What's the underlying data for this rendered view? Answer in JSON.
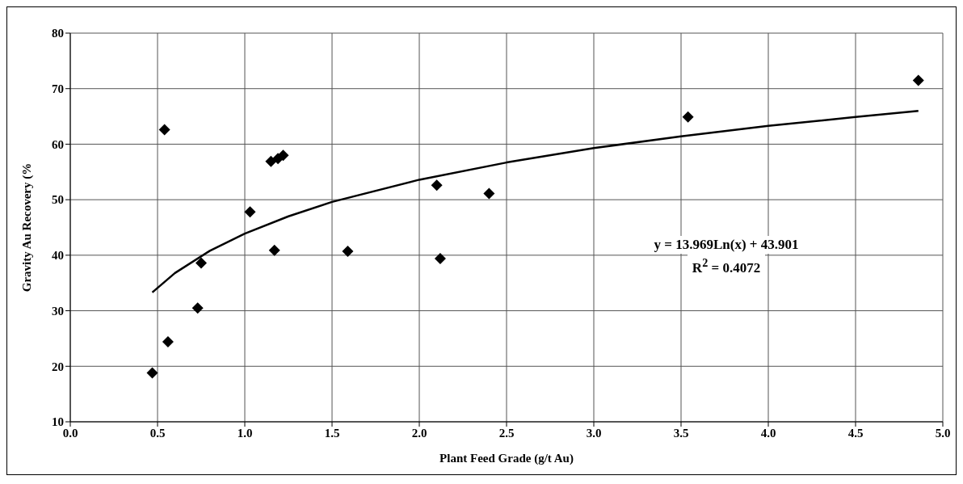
{
  "chart_data": {
    "type": "scatter",
    "xlabel": "Plant Feed Grade (g/t Au)",
    "ylabel": "Gravity Au Recovery (%",
    "xlim": [
      0,
      5
    ],
    "xticks": [
      {
        "value": 0,
        "label": "0.0"
      },
      {
        "value": 0.5,
        "label": "0.5"
      },
      {
        "value": 1,
        "label": "1.0"
      },
      {
        "value": 1.5,
        "label": "1.5"
      },
      {
        "value": 2,
        "label": "2.0"
      },
      {
        "value": 2.5,
        "label": "2.5"
      },
      {
        "value": 3,
        "label": "3.0"
      },
      {
        "value": 3.5,
        "label": "3.5"
      },
      {
        "value": 4,
        "label": "4.0"
      },
      {
        "value": 4.5,
        "label": "4.5"
      },
      {
        "value": 5,
        "label": "5.0"
      }
    ],
    "ylim": [
      10,
      80
    ],
    "yticks": [
      10,
      20,
      30,
      40,
      50,
      60,
      70,
      80
    ],
    "grid": true,
    "legend": false,
    "series": [
      {
        "marker": "diamond",
        "color": "#000000",
        "x": [
          0.47,
          0.54,
          0.56,
          0.73,
          0.75,
          1.03,
          1.15,
          1.19,
          1.22,
          1.17,
          1.59,
          2.1,
          2.12,
          2.4,
          3.54,
          4.86
        ],
        "values": [
          18.8,
          62.6,
          24.4,
          30.5,
          38.6,
          47.8,
          56.9,
          57.4,
          58,
          40.9,
          40.7,
          52.6,
          39.4,
          51.1,
          64.9,
          71.5
        ]
      },
      {
        "type": "line",
        "marker": "none",
        "color": "#000000",
        "x": [
          0.47,
          0.6,
          0.8,
          1.0,
          1.25,
          1.5,
          2.0,
          2.5,
          3.0,
          3.5,
          4.0,
          4.5,
          4.86
        ],
        "values": [
          33.3,
          36.8,
          40.8,
          43.9,
          47.0,
          49.6,
          53.6,
          56.7,
          59.3,
          61.4,
          63.3,
          64.9,
          66.0
        ]
      }
    ],
    "annotations": [
      "y = 13.969Ln(x) + 43.901",
      "R$^{2}$ = 0.4072"
    ]
  }
}
